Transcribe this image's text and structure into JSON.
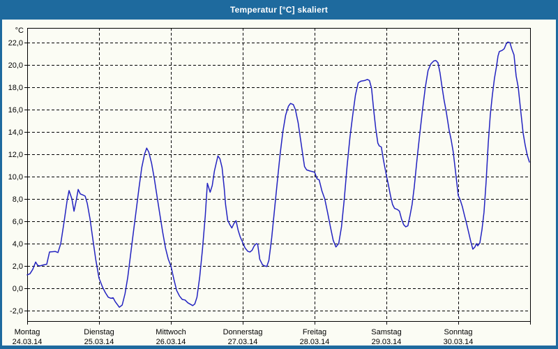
{
  "window": {
    "title": "Temperatur [°C] skaliert",
    "titlebar_color": "#1e6a9e",
    "frame_color": "#1e6a9e",
    "background_color": "#fbfcf4"
  },
  "chart_data": {
    "type": "line",
    "title": "Temperatur [°C] skaliert",
    "grid": "dashed",
    "legend": "none",
    "line_color": "#2222c0",
    "grid_color": "#000000",
    "text_color": "#000000",
    "y_axis": {
      "unit_label": "°C",
      "min": -2,
      "max": 22,
      "tick_step": 2,
      "ticks": [
        {
          "value": 22,
          "label": "22,0"
        },
        {
          "value": 20,
          "label": "20,0"
        },
        {
          "value": 18,
          "label": "18,0"
        },
        {
          "value": 16,
          "label": "16,0"
        },
        {
          "value": 14,
          "label": "14,0"
        },
        {
          "value": 12,
          "label": "12,0"
        },
        {
          "value": 10,
          "label": "10,0"
        },
        {
          "value": 8,
          "label": "8,0"
        },
        {
          "value": 6,
          "label": "6,0"
        },
        {
          "value": 4,
          "label": "4,0"
        },
        {
          "value": 2,
          "label": "2,0"
        },
        {
          "value": 0,
          "label": "0,0"
        },
        {
          "value": -2,
          "label": "-2,0"
        }
      ]
    },
    "x_axis": {
      "days": [
        {
          "name": "Montag",
          "date": "24.03.14"
        },
        {
          "name": "Dienstag",
          "date": "25.03.14"
        },
        {
          "name": "Mittwoch",
          "date": "26.03.14"
        },
        {
          "name": "Donnerstag",
          "date": "27.03.14"
        },
        {
          "name": "Freitag",
          "date": "28.03.14"
        },
        {
          "name": "Samstag",
          "date": "29.03.14"
        },
        {
          "name": "Sonntag",
          "date": "30.03.14"
        }
      ]
    },
    "series": [
      {
        "name": "Temperatur",
        "points": [
          [
            0.0,
            1.2
          ],
          [
            0.039,
            1.3
          ],
          [
            0.078,
            1.7
          ],
          [
            0.117,
            2.35
          ],
          [
            0.146,
            2.05
          ],
          [
            0.175,
            2.0
          ],
          [
            0.233,
            2.1
          ],
          [
            0.272,
            2.15
          ],
          [
            0.311,
            3.25
          ],
          [
            0.389,
            3.3
          ],
          [
            0.428,
            3.2
          ],
          [
            0.467,
            4.0
          ],
          [
            0.515,
            6.0
          ],
          [
            0.554,
            7.8
          ],
          [
            0.583,
            8.75
          ],
          [
            0.622,
            8.0
          ],
          [
            0.651,
            6.9
          ],
          [
            0.681,
            7.8
          ],
          [
            0.71,
            8.85
          ],
          [
            0.739,
            8.45
          ],
          [
            0.778,
            8.35
          ],
          [
            0.807,
            8.25
          ],
          [
            0.836,
            7.6
          ],
          [
            0.875,
            6.2
          ],
          [
            0.914,
            4.4
          ],
          [
            0.953,
            2.6
          ],
          [
            1.0,
            0.9
          ],
          [
            1.049,
            0.1
          ],
          [
            1.088,
            -0.4
          ],
          [
            1.128,
            -0.8
          ],
          [
            1.166,
            -0.9
          ],
          [
            1.196,
            -0.85
          ],
          [
            1.225,
            -1.2
          ],
          [
            1.283,
            -1.7
          ],
          [
            1.322,
            -1.5
          ],
          [
            1.361,
            -0.5
          ],
          [
            1.4,
            1.0
          ],
          [
            1.439,
            3.0
          ],
          [
            1.478,
            5.0
          ],
          [
            1.517,
            7.0
          ],
          [
            1.556,
            9.0
          ],
          [
            1.594,
            10.8
          ],
          [
            1.633,
            12.0
          ],
          [
            1.663,
            12.55
          ],
          [
            1.692,
            12.2
          ],
          [
            1.731,
            11.2
          ],
          [
            1.77,
            9.8
          ],
          [
            1.808,
            8.2
          ],
          [
            1.847,
            6.6
          ],
          [
            1.886,
            5.0
          ],
          [
            1.925,
            3.6
          ],
          [
            1.964,
            2.6
          ],
          [
            2.0,
            2.0
          ],
          [
            2.042,
            0.8
          ],
          [
            2.081,
            -0.2
          ],
          [
            2.12,
            -0.7
          ],
          [
            2.158,
            -1.0
          ],
          [
            2.197,
            -1.05
          ],
          [
            2.236,
            -1.3
          ],
          [
            2.304,
            -1.55
          ],
          [
            2.333,
            -1.4
          ],
          [
            2.363,
            -0.8
          ],
          [
            2.401,
            1.0
          ],
          [
            2.44,
            3.5
          ],
          [
            2.479,
            6.5
          ],
          [
            2.508,
            9.4
          ],
          [
            2.547,
            8.6
          ],
          [
            2.576,
            9.2
          ],
          [
            2.606,
            10.5
          ],
          [
            2.654,
            11.85
          ],
          [
            2.683,
            11.6
          ],
          [
            2.713,
            10.8
          ],
          [
            2.742,
            9.0
          ],
          [
            2.761,
            7.5
          ],
          [
            2.79,
            6.1
          ],
          [
            2.82,
            5.7
          ],
          [
            2.849,
            5.4
          ],
          [
            2.878,
            5.8
          ],
          [
            2.907,
            6.05
          ],
          [
            2.936,
            5.2
          ],
          [
            2.965,
            4.6
          ],
          [
            3.0,
            4.1
          ],
          [
            3.033,
            3.6
          ],
          [
            3.072,
            3.3
          ],
          [
            3.101,
            3.25
          ],
          [
            3.13,
            3.4
          ],
          [
            3.16,
            3.8
          ],
          [
            3.189,
            4.0
          ],
          [
            3.208,
            3.95
          ],
          [
            3.237,
            2.6
          ],
          [
            3.276,
            2.1
          ],
          [
            3.306,
            2.0
          ],
          [
            3.335,
            1.95
          ],
          [
            3.364,
            2.5
          ],
          [
            3.403,
            4.5
          ],
          [
            3.442,
            7.0
          ],
          [
            3.481,
            9.5
          ],
          [
            3.52,
            12.0
          ],
          [
            3.558,
            14.0
          ],
          [
            3.597,
            15.5
          ],
          [
            3.636,
            16.3
          ],
          [
            3.665,
            16.55
          ],
          [
            3.704,
            16.45
          ],
          [
            3.733,
            16.0
          ],
          [
            3.772,
            14.8
          ],
          [
            3.801,
            13.5
          ],
          [
            3.83,
            12.2
          ],
          [
            3.86,
            10.9
          ],
          [
            3.889,
            10.6
          ],
          [
            3.937,
            10.5
          ],
          [
            4.0,
            10.4
          ],
          [
            4.035,
            9.8
          ],
          [
            4.064,
            9.7
          ],
          [
            4.103,
            8.7
          ],
          [
            4.142,
            8.0
          ],
          [
            4.181,
            6.8
          ],
          [
            4.22,
            5.5
          ],
          [
            4.259,
            4.3
          ],
          [
            4.297,
            3.7
          ],
          [
            4.336,
            4.0
          ],
          [
            4.375,
            5.5
          ],
          [
            4.414,
            8.0
          ],
          [
            4.453,
            11.0
          ],
          [
            4.492,
            13.5
          ],
          [
            4.531,
            15.5
          ],
          [
            4.569,
            17.3
          ],
          [
            4.608,
            18.4
          ],
          [
            4.647,
            18.55
          ],
          [
            4.696,
            18.6
          ],
          [
            4.735,
            18.7
          ],
          [
            4.764,
            18.6
          ],
          [
            4.793,
            17.9
          ],
          [
            4.822,
            16.0
          ],
          [
            4.851,
            14.3
          ],
          [
            4.881,
            13.0
          ],
          [
            4.9,
            12.75
          ],
          [
            4.929,
            12.65
          ],
          [
            4.958,
            11.5
          ],
          [
            5.0,
            10.1
          ],
          [
            5.026,
            9.3
          ],
          [
            5.056,
            8.3
          ],
          [
            5.085,
            7.5
          ],
          [
            5.114,
            7.15
          ],
          [
            5.153,
            7.05
          ],
          [
            5.182,
            6.9
          ],
          [
            5.211,
            6.2
          ],
          [
            5.24,
            5.7
          ],
          [
            5.269,
            5.5
          ],
          [
            5.299,
            5.6
          ],
          [
            5.328,
            6.5
          ],
          [
            5.357,
            7.5
          ],
          [
            5.386,
            9.0
          ],
          [
            5.425,
            11.5
          ],
          [
            5.464,
            13.8
          ],
          [
            5.503,
            16.0
          ],
          [
            5.542,
            18.0
          ],
          [
            5.58,
            19.5
          ],
          [
            5.619,
            20.1
          ],
          [
            5.658,
            20.35
          ],
          [
            5.687,
            20.4
          ],
          [
            5.717,
            20.2
          ],
          [
            5.746,
            19.3
          ],
          [
            5.775,
            18.0
          ],
          [
            5.804,
            16.8
          ],
          [
            5.833,
            15.8
          ],
          [
            5.872,
            14.2
          ],
          [
            5.901,
            13.3
          ],
          [
            5.93,
            12.2
          ],
          [
            5.959,
            10.6
          ],
          [
            6.0,
            8.3
          ],
          [
            6.028,
            7.9
          ],
          [
            6.057,
            7.3
          ],
          [
            6.087,
            6.5
          ],
          [
            6.116,
            5.8
          ],
          [
            6.145,
            5.0
          ],
          [
            6.174,
            4.2
          ],
          [
            6.203,
            3.5
          ],
          [
            6.232,
            3.7
          ],
          [
            6.252,
            4.0
          ],
          [
            6.271,
            3.8
          ],
          [
            6.3,
            4.05
          ],
          [
            6.329,
            5.2
          ],
          [
            6.358,
            6.8
          ],
          [
            6.387,
            9.5
          ],
          [
            6.417,
            13.0
          ],
          [
            6.446,
            15.5
          ],
          [
            6.475,
            17.3
          ],
          [
            6.504,
            18.8
          ],
          [
            6.533,
            19.9
          ],
          [
            6.553,
            20.8
          ],
          [
            6.572,
            21.2
          ],
          [
            6.611,
            21.3
          ],
          [
            6.64,
            21.45
          ],
          [
            6.669,
            21.9
          ],
          [
            6.689,
            22.05
          ],
          [
            6.718,
            22.0
          ],
          [
            6.747,
            21.4
          ],
          [
            6.776,
            20.9
          ],
          [
            6.806,
            19.0
          ],
          [
            6.835,
            18.0
          ],
          [
            6.864,
            16.2
          ],
          [
            6.903,
            13.9
          ],
          [
            6.932,
            12.8
          ],
          [
            6.961,
            11.9
          ],
          [
            6.99,
            11.3
          ]
        ]
      }
    ]
  }
}
